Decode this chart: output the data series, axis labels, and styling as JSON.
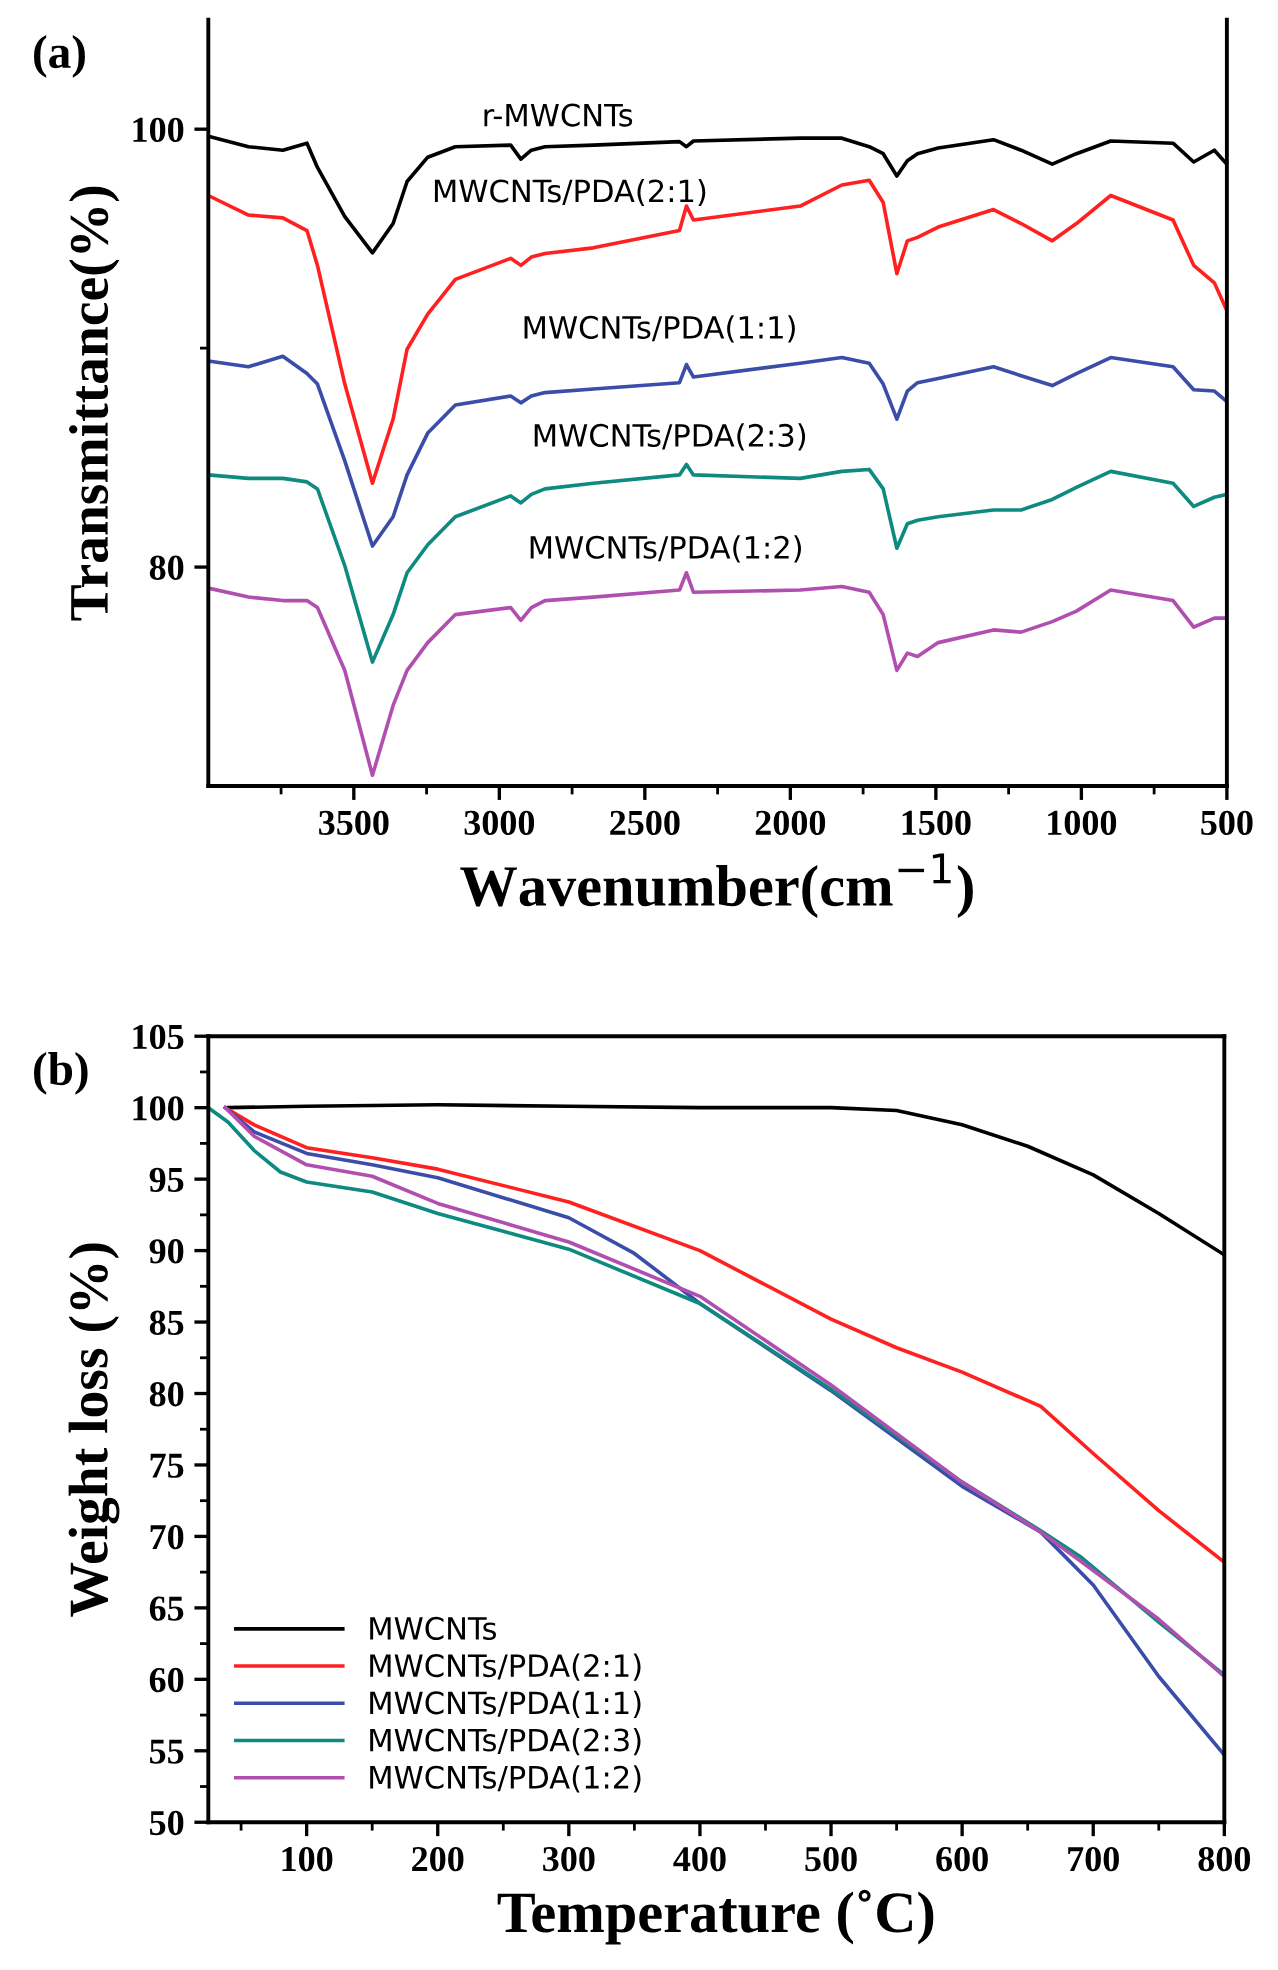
{
  "chart_data": [
    {
      "type": "line",
      "title": "(a)",
      "xlabel": "Wavenumber(cm$^{−1}$)",
      "ylabel": "Transmittance(%)",
      "x": [
        4000,
        3862,
        3744,
        3661,
        3625,
        3531,
        3436,
        3365,
        3317,
        3246,
        3151,
        2961,
        2926,
        2890,
        2843,
        2677,
        2381,
        2357,
        2333,
        1966,
        1823,
        1729,
        1681,
        1634,
        1598,
        1563,
        1492,
        1302,
        1207,
        1100,
        1017,
        899,
        685,
        614,
        543,
        500
      ],
      "xlim": [
        4000,
        500
      ],
      "ylim": [
        70,
        105
      ],
      "xticks": [
        {
          "value": 3750,
          "label": null
        },
        3500,
        {
          "value": 3250,
          "label": null
        },
        3000,
        {
          "value": 2750,
          "label": null
        },
        2500,
        {
          "value": 2250,
          "label": null
        },
        2000,
        {
          "value": 1750,
          "label": null
        },
        1500,
        {
          "value": 1250,
          "label": null
        },
        1000,
        {
          "value": 750,
          "label": null
        },
        500
      ],
      "yticks": [
        100,
        {
          "value": 90,
          "label": null
        },
        80
      ],
      "legend": false,
      "grid": false,
      "marker": "none",
      "line_style": "solid",
      "series": [
        {
          "name": "r-MWCNTs",
          "color": "#000000",
          "values": [
            99.68,
            99.2,
            99.04,
            99.36,
            98.25,
            96.01,
            94.35,
            95.69,
            97.61,
            98.72,
            99.2,
            99.27,
            98.63,
            99.04,
            99.2,
            99.27,
            99.43,
            99.2,
            99.46,
            99.59,
            99.59,
            99.2,
            98.88,
            97.86,
            98.56,
            98.88,
            99.14,
            99.52,
            99.04,
            98.4,
            98.88,
            99.46,
            99.36,
            98.5,
            99.04,
            98.4
          ]
        },
        {
          "name": "MWCNTs/PDA(2:1)",
          "color": "#ff2020",
          "values": [
            96.97,
            96.08,
            95.95,
            95.37,
            93.78,
            88.36,
            83.83,
            86.76,
            89.95,
            91.55,
            93.14,
            94.1,
            93.78,
            94.16,
            94.32,
            94.58,
            95.37,
            96.49,
            95.85,
            96.49,
            97.45,
            97.67,
            96.65,
            93.4,
            94.9,
            95.06,
            95.53,
            96.33,
            95.69,
            94.9,
            95.69,
            96.97,
            95.85,
            93.78,
            92.98,
            91.71
          ]
        },
        {
          "name": "MWCNTs/PDA(1:1)",
          "color": "#3a4da8",
          "values": [
            89.41,
            89.15,
            89.63,
            88.84,
            88.36,
            84.85,
            80.96,
            82.3,
            84.21,
            86.12,
            87.4,
            87.81,
            87.5,
            87.81,
            87.97,
            88.13,
            88.42,
            89.25,
            88.68,
            89.31,
            89.57,
            89.31,
            88.36,
            86.76,
            88.04,
            88.42,
            88.61,
            89.15,
            88.74,
            88.29,
            88.84,
            89.57,
            89.15,
            88.1,
            88.04,
            87.56
          ]
        },
        {
          "name": "MWCNTs/PDA(2:3)",
          "color": "#0e8a80",
          "values": [
            84.21,
            84.05,
            84.05,
            83.89,
            83.57,
            80.06,
            75.66,
            77.83,
            79.74,
            81.02,
            82.3,
            83.25,
            82.93,
            83.32,
            83.57,
            83.83,
            84.21,
            84.69,
            84.21,
            84.05,
            84.37,
            84.46,
            83.57,
            80.86,
            81.98,
            82.14,
            82.3,
            82.61,
            82.61,
            83.09,
            83.64,
            84.37,
            83.83,
            82.77,
            83.19,
            83.32
          ]
        },
        {
          "name": "MWCNTs/PDA(1:2)",
          "color": "#b04fb0",
          "values": [
            79.04,
            78.63,
            78.47,
            78.47,
            78.15,
            75.28,
            70.49,
            73.68,
            75.28,
            76.55,
            77.83,
            78.15,
            77.57,
            78.15,
            78.47,
            78.63,
            78.95,
            79.74,
            78.85,
            78.95,
            79.11,
            78.85,
            77.83,
            75.28,
            76.07,
            75.92,
            76.55,
            77.13,
            77.03,
            77.51,
            77.99,
            78.95,
            78.47,
            77.26,
            77.67,
            77.67
          ]
        }
      ]
    },
    {
      "type": "line",
      "title": "(b)",
      "xlabel": "Temperature (˚C)",
      "ylabel": "Weight loss (%)",
      "xlim": [
        25,
        800
      ],
      "ylim": [
        50,
        105
      ],
      "xticks": [
        {
          "value": 50,
          "label": null
        },
        100,
        {
          "value": 150,
          "label": null
        },
        200,
        {
          "value": 250,
          "label": null
        },
        300,
        {
          "value": 350,
          "label": null
        },
        400,
        {
          "value": 450,
          "label": null
        },
        500,
        {
          "value": 550,
          "label": null
        },
        600,
        {
          "value": 650,
          "label": null
        },
        700,
        {
          "value": 750,
          "label": null
        },
        800
      ],
      "yticks": [
        50,
        {
          "value": 52.5,
          "label": null
        },
        55,
        {
          "value": 57.5,
          "label": null
        },
        60,
        {
          "value": 62.5,
          "label": null
        },
        65,
        {
          "value": 67.5,
          "label": null
        },
        70,
        {
          "value": 72.5,
          "label": null
        },
        75,
        {
          "value": 77.5,
          "label": null
        },
        80,
        {
          "value": 82.5,
          "label": null
        },
        85,
        {
          "value": 87.5,
          "label": null
        },
        90,
        {
          "value": 92.5,
          "label": null
        },
        95,
        {
          "value": 97.5,
          "label": null
        },
        100,
        {
          "value": 102.5,
          "label": null
        },
        105
      ],
      "legend": "bottom left",
      "grid": false,
      "marker": "none",
      "line_style": "solid",
      "series": [
        {
          "name": "MWCNTs",
          "color": "#000000",
          "x": [
            40,
            100,
            200,
            300,
            400,
            500,
            550,
            600,
            650,
            700,
            750,
            800
          ],
          "values": [
            100,
            100.1,
            100.2,
            100.1,
            100,
            100,
            99.8,
            98.8,
            97.3,
            95.3,
            92.6,
            89.7
          ]
        },
        {
          "name": "MWCNTs/PDA(2:1)",
          "color": "#ff2020",
          "x": [
            38,
            60,
            100,
            150,
            200,
            300,
            400,
            500,
            550,
            600,
            660,
            700,
            750,
            800
          ],
          "values": [
            100,
            98.8,
            97.2,
            96.5,
            95.7,
            93.4,
            90,
            85.2,
            83.2,
            81.5,
            79.1,
            75.8,
            71.8,
            68.2
          ]
        },
        {
          "name": "MWCNTs/PDA(1:1)",
          "color": "#3a4da8",
          "x": [
            38,
            60,
            100,
            150,
            200,
            300,
            350,
            400,
            500,
            600,
            660,
            700,
            750,
            800
          ],
          "values": [
            100,
            98.3,
            96.8,
            96.0,
            95.1,
            92.3,
            89.8,
            86.3,
            80.2,
            73.5,
            70.3,
            66.6,
            60.2,
            54.7
          ]
        },
        {
          "name": "MWCNTs/PDA(2:3)",
          "color": "#0e8a80",
          "x": [
            25,
            40,
            60,
            80,
            100,
            150,
            200,
            300,
            400,
            500,
            600,
            660,
            690,
            750,
            800
          ],
          "values": [
            100,
            99,
            97,
            95.5,
            94.8,
            94.1,
            92.6,
            90.1,
            86.3,
            80.3,
            73.8,
            70.4,
            68.6,
            64.0,
            60.3
          ]
        },
        {
          "name": "MWCNTs/PDA(1:2)",
          "color": "#b04fb0",
          "x": [
            38,
            60,
            100,
            150,
            200,
            300,
            400,
            500,
            600,
            660,
            690,
            750,
            800
          ],
          "values": [
            100,
            98,
            96.0,
            95.2,
            93.3,
            90.6,
            86.8,
            80.6,
            73.8,
            70.3,
            68.3,
            64.2,
            60.2
          ]
        }
      ]
    }
  ]
}
